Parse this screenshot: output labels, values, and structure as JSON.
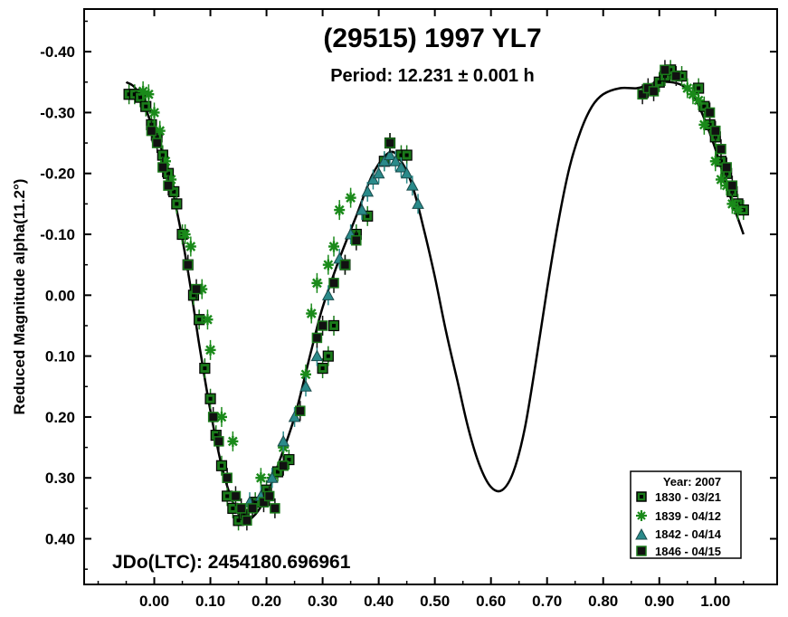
{
  "chart_data": {
    "type": "scatter",
    "title": "(29515) 1997 YL7",
    "subtitle": "Period: 12.231 ± 0.001 h",
    "ylabel": "Reduced Magnitude alpha(11.2°)",
    "xlabel": "",
    "xlim": [
      -0.125,
      1.11
    ],
    "ylim": [
      0.475,
      -0.47
    ],
    "y_inverted": true,
    "x_ticks": [
      0.0,
      0.1,
      0.2,
      0.3,
      0.4,
      0.5,
      0.6,
      0.7,
      0.8,
      0.9,
      1.0
    ],
    "x_tick_labels": [
      "0.00",
      "0.10",
      "0.20",
      "0.30",
      "0.40",
      "0.50",
      "0.60",
      "0.70",
      "0.80",
      "0.90",
      "1.00"
    ],
    "y_ticks": [
      -0.4,
      -0.3,
      -0.2,
      -0.1,
      0.0,
      0.1,
      0.2,
      0.3,
      0.4
    ],
    "y_tick_labels": [
      "-0.40",
      "-0.30",
      "-0.20",
      "-0.10",
      "0.00",
      "0.10",
      "0.20",
      "0.30",
      "0.40"
    ],
    "grid": false,
    "annotation": "JDo(LTC): 2454180.696961",
    "legend": {
      "title": "Year: 2007",
      "placement": "bottom-right",
      "entries": [
        "1830 - 03/21",
        "1839 - 04/12",
        "1842 - 04/14",
        "1846 - 04/15"
      ]
    },
    "fit_curve": {
      "name": "Fourier fit",
      "x": [
        -0.05,
        -0.03,
        0.0,
        0.02,
        0.04,
        0.06,
        0.08,
        0.1,
        0.12,
        0.14,
        0.16,
        0.18,
        0.2,
        0.22,
        0.25,
        0.28,
        0.3,
        0.33,
        0.36,
        0.39,
        0.42,
        0.44,
        0.46,
        0.48,
        0.5,
        0.52,
        0.54,
        0.56,
        0.58,
        0.6,
        0.62,
        0.64,
        0.66,
        0.68,
        0.7,
        0.72,
        0.74,
        0.76,
        0.78,
        0.8,
        0.83,
        0.86,
        0.88,
        0.9,
        0.92,
        0.94,
        0.96,
        0.98,
        1.0,
        1.02,
        1.05
      ],
      "y": [
        -0.35,
        -0.335,
        -0.27,
        -0.22,
        -0.14,
        -0.04,
        0.08,
        0.19,
        0.28,
        0.34,
        0.37,
        0.36,
        0.33,
        0.28,
        0.2,
        0.09,
        0.02,
        -0.06,
        -0.13,
        -0.2,
        -0.235,
        -0.22,
        -0.18,
        -0.11,
        -0.03,
        0.06,
        0.14,
        0.22,
        0.28,
        0.315,
        0.32,
        0.29,
        0.22,
        0.11,
        -0.01,
        -0.12,
        -0.21,
        -0.27,
        -0.31,
        -0.33,
        -0.34,
        -0.34,
        -0.345,
        -0.35,
        -0.35,
        -0.345,
        -0.33,
        -0.29,
        -0.24,
        -0.18,
        -0.1
      ]
    },
    "series": [
      {
        "name": "1830 - 03/21",
        "marker": "square-open",
        "color": "#1a7a1a",
        "x": [
          -0.045,
          -0.035,
          -0.025,
          -0.015,
          -0.005,
          0.005,
          0.015,
          0.025,
          0.035,
          0.04,
          0.05,
          0.06,
          0.07,
          0.08,
          0.09,
          0.1,
          0.11,
          0.12,
          0.13,
          0.14,
          0.15,
          0.16,
          0.18,
          0.2,
          0.22,
          0.24,
          0.3,
          0.31,
          0.32,
          0.34,
          0.36,
          0.38,
          0.41,
          0.42,
          0.44,
          0.45,
          0.9,
          0.91,
          0.92,
          0.94,
          0.97,
          0.98,
          0.99,
          1.0,
          1.01,
          1.02,
          1.03,
          1.04,
          1.05
        ],
        "y": [
          -0.33,
          -0.33,
          -0.325,
          -0.31,
          -0.28,
          -0.26,
          -0.23,
          -0.2,
          -0.17,
          -0.15,
          -0.1,
          -0.05,
          0.0,
          0.04,
          0.12,
          0.17,
          0.23,
          0.28,
          0.33,
          0.35,
          0.37,
          0.36,
          0.34,
          0.32,
          0.29,
          0.27,
          0.12,
          0.1,
          0.05,
          -0.05,
          -0.1,
          -0.13,
          -0.22,
          -0.25,
          -0.23,
          -0.23,
          -0.35,
          -0.36,
          -0.37,
          -0.36,
          -0.34,
          -0.31,
          -0.28,
          -0.26,
          -0.22,
          -0.2,
          -0.17,
          -0.15,
          -0.14
        ]
      },
      {
        "name": "1839 - 04/12",
        "marker": "star",
        "color": "#1a8a1a",
        "x": [
          -0.02,
          -0.01,
          0.0,
          0.01,
          0.02,
          0.03,
          0.055,
          0.065,
          0.085,
          0.095,
          0.1,
          0.12,
          0.14,
          0.19,
          0.21,
          0.23,
          0.27,
          0.28,
          0.29,
          0.31,
          0.32,
          0.33,
          0.35,
          0.95,
          0.96,
          0.97,
          0.98,
          1.0,
          1.01,
          1.02,
          1.03,
          1.04
        ],
        "y": [
          -0.335,
          -0.33,
          -0.3,
          -0.27,
          -0.22,
          -0.19,
          -0.1,
          -0.08,
          -0.01,
          0.04,
          0.09,
          0.2,
          0.24,
          0.3,
          0.3,
          0.25,
          0.13,
          0.03,
          -0.02,
          -0.05,
          -0.08,
          -0.14,
          -0.16,
          -0.34,
          -0.33,
          -0.32,
          -0.28,
          -0.22,
          -0.19,
          -0.18,
          -0.15,
          -0.14
        ]
      },
      {
        "name": "1842 - 04/14",
        "marker": "triangle",
        "color": "#2a8a8a",
        "x": [
          0.17,
          0.19,
          0.21,
          0.23,
          0.25,
          0.27,
          0.29,
          0.31,
          0.33,
          0.35,
          0.37,
          0.38,
          0.39,
          0.4,
          0.41,
          0.42,
          0.43,
          0.44,
          0.45,
          0.46,
          0.47
        ],
        "y": [
          0.34,
          0.33,
          0.3,
          0.24,
          0.2,
          0.15,
          0.1,
          0.0,
          -0.06,
          -0.1,
          -0.14,
          -0.17,
          -0.19,
          -0.2,
          -0.22,
          -0.23,
          -0.22,
          -0.21,
          -0.2,
          -0.18,
          -0.15
        ]
      },
      {
        "name": "1846 - 04/15",
        "marker": "square-filled",
        "color": "#111111",
        "x": [
          -0.005,
          0.005,
          0.015,
          0.025,
          0.06,
          0.075,
          0.105,
          0.115,
          0.13,
          0.145,
          0.155,
          0.165,
          0.175,
          0.195,
          0.205,
          0.215,
          0.23,
          0.26,
          0.29,
          0.3,
          0.32,
          0.34,
          0.36,
          0.42,
          0.87,
          0.88,
          0.89,
          0.91,
          0.93,
          0.99,
          1.0,
          1.01,
          1.02,
          1.03
        ],
        "y": [
          -0.27,
          -0.25,
          -0.21,
          -0.18,
          -0.05,
          -0.01,
          0.2,
          0.24,
          0.3,
          0.33,
          0.35,
          0.37,
          0.35,
          0.34,
          0.33,
          0.35,
          0.28,
          0.19,
          0.07,
          0.05,
          -0.02,
          -0.05,
          -0.09,
          -0.25,
          -0.33,
          -0.34,
          -0.335,
          -0.37,
          -0.36,
          -0.3,
          -0.27,
          -0.24,
          -0.21,
          -0.18
        ]
      }
    ]
  }
}
